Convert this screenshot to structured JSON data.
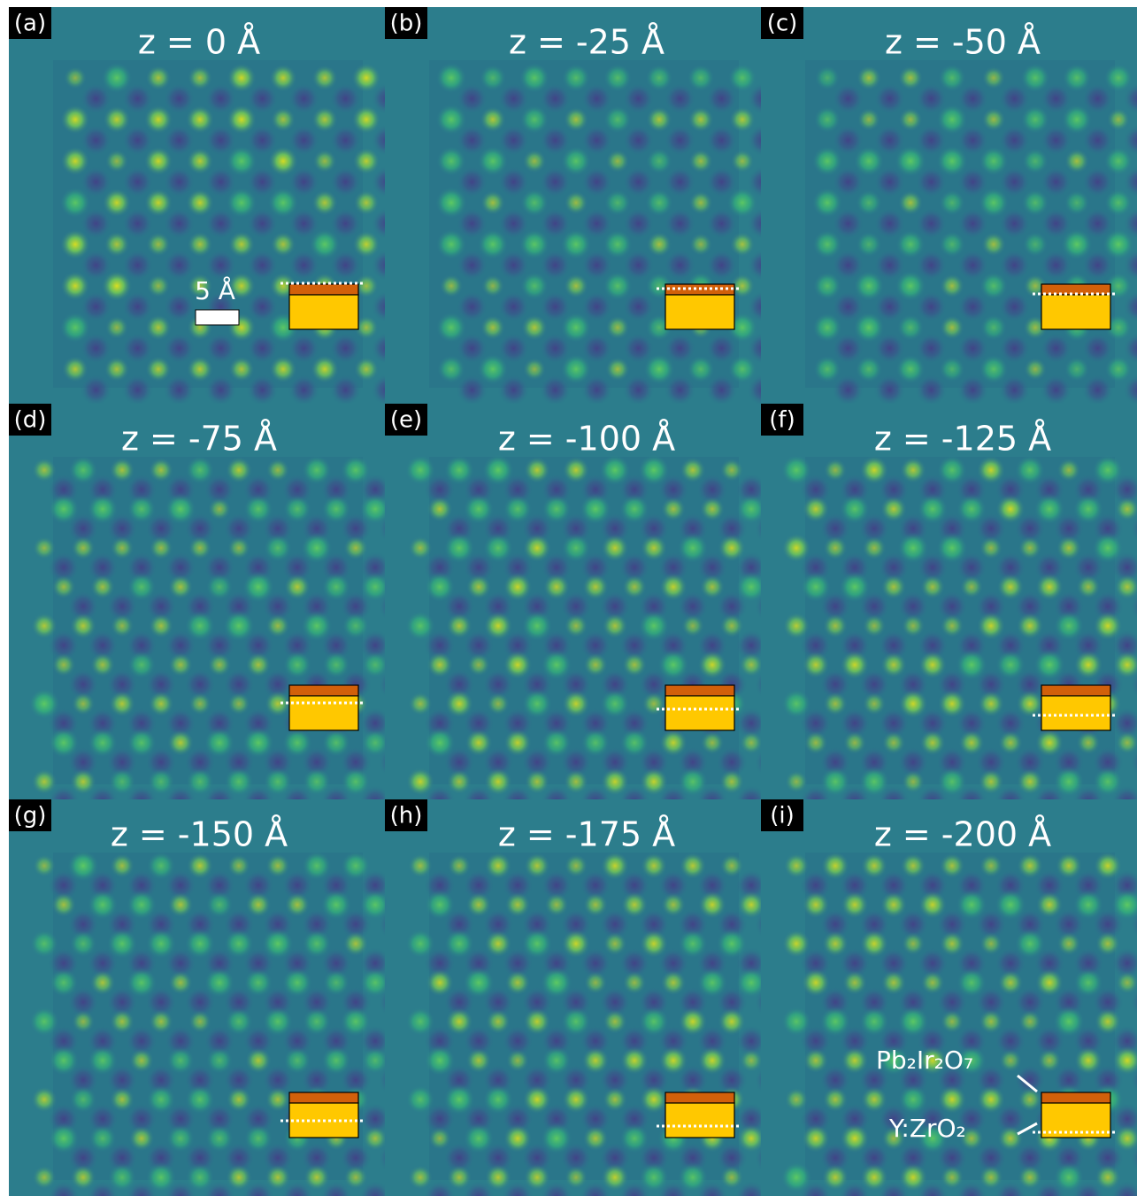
{
  "panels": [
    {
      "label": "(a)",
      "title": "z = 0 Å"
    },
    {
      "label": "(b)",
      "title": "z = -25 Å"
    },
    {
      "label": "(c)",
      "title": "z = -50 Å"
    },
    {
      "label": "(d)",
      "title": "z = -75 Å"
    },
    {
      "label": "(e)",
      "title": "z = -100 Å"
    },
    {
      "label": "(f)",
      "title": "z = -125 Å"
    },
    {
      "label": "(g)",
      "title": "z = -150 Å"
    },
    {
      "label": "(h)",
      "title": "z = -175 Å"
    },
    {
      "label": "(i)",
      "title": "z = -200 Å"
    }
  ],
  "scale_bar": "5 Å",
  "film_label": "Pb₂Ir₂O₇",
  "substrate_label": "Y:ZrO₂"
}
